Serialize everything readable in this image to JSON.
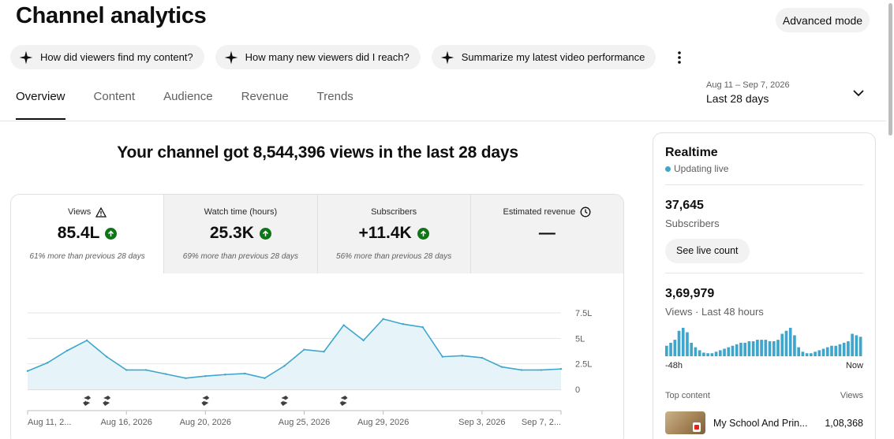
{
  "page": {
    "title": "Channel analytics",
    "advanced_mode": "Advanced mode"
  },
  "chips": [
    {
      "label": "How did viewers find my content?",
      "icon": "sparkle-icon"
    },
    {
      "label": "How many new viewers did I reach?",
      "icon": "sparkle-icon"
    },
    {
      "label": "Summarize my latest video performance",
      "icon": "sparkle-icon"
    }
  ],
  "tabs": [
    {
      "label": "Overview",
      "active": true
    },
    {
      "label": "Content",
      "active": false
    },
    {
      "label": "Audience",
      "active": false
    },
    {
      "label": "Revenue",
      "active": false
    },
    {
      "label": "Trends",
      "active": false
    }
  ],
  "date_picker": {
    "range": "Aug 11 – Sep 7, 2026",
    "label": "Last 28 days"
  },
  "headline": "Your channel got 8,544,396 views in the last 28 days",
  "metrics": [
    {
      "label": "Views",
      "value": "85.4L",
      "note": "61% more than previous 28 days",
      "trend": "up",
      "icon": "warning-icon",
      "active": true
    },
    {
      "label": "Watch time (hours)",
      "value": "25.3K",
      "note": "69% more than previous 28 days",
      "trend": "up",
      "active": false
    },
    {
      "label": "Subscribers",
      "value": "+11.4K",
      "note": "56% more than previous 28 days",
      "trend": "up",
      "active": false
    },
    {
      "label": "Estimated revenue",
      "value": "—",
      "note": "",
      "icon": "clock-icon",
      "active": false
    }
  ],
  "chart_data": {
    "type": "area",
    "series": [
      {
        "values": [
          1.8,
          2.6,
          3.8,
          4.8,
          3.2,
          1.9,
          1.9,
          1.5,
          1.1,
          1.3,
          1.45,
          1.55,
          1.1,
          2.3,
          3.9,
          3.7,
          6.3,
          4.8,
          6.9,
          6.4,
          6.1,
          3.2,
          3.3,
          3.1,
          2.2,
          1.9,
          1.9,
          2.0
        ]
      }
    ],
    "x_tick_labels": [
      "Aug 11, 2...",
      "Aug 16, 2026",
      "Aug 20, 2026",
      "Aug 25, 2026",
      "Aug 29, 2026",
      "Sep 3, 2026",
      "Sep 7, 2..."
    ],
    "x_tick_index": [
      0,
      5,
      9,
      14,
      18,
      23,
      27
    ],
    "y_tick_labels": [
      "0",
      "2.5L",
      "5L",
      "7.5L"
    ],
    "y_tick_values": [
      0,
      2.5,
      5,
      7.5
    ],
    "ylim": [
      0,
      7.5
    ],
    "y_unit": "L",
    "upload_marker_days": [
      3,
      4,
      9,
      13,
      16
    ],
    "upload_marker_icon": "shorts-icon",
    "colors": {
      "line": "#3ea6cc",
      "fill": "#e6f4fa",
      "grid": "#e5e5e5"
    }
  },
  "realtime": {
    "title": "Realtime",
    "status": "Updating live",
    "subscribers_value": "37,645",
    "subscribers_label": "Subscribers",
    "live_count_button": "See live count",
    "views_value": "3,69,979",
    "views_label": "Views · Last 48 hours",
    "axis_start": "-48h",
    "axis_end": "Now",
    "bars": [
      0.35,
      0.45,
      0.55,
      0.85,
      0.95,
      0.8,
      0.45,
      0.3,
      0.2,
      0.12,
      0.1,
      0.1,
      0.15,
      0.2,
      0.25,
      0.3,
      0.35,
      0.4,
      0.45,
      0.45,
      0.5,
      0.5,
      0.55,
      0.55,
      0.55,
      0.5,
      0.5,
      0.55,
      0.75,
      0.85,
      0.95,
      0.7,
      0.3,
      0.15,
      0.1,
      0.1,
      0.15,
      0.2,
      0.25,
      0.3,
      0.35,
      0.35,
      0.4,
      0.45,
      0.5,
      0.75,
      0.7,
      0.65
    ],
    "bar_color": "#3ea6cc",
    "top_content_label": "Top content",
    "top_content_metric": "Views",
    "top_items": [
      {
        "title": "My School And Prin...",
        "views": "1,08,368"
      }
    ]
  }
}
